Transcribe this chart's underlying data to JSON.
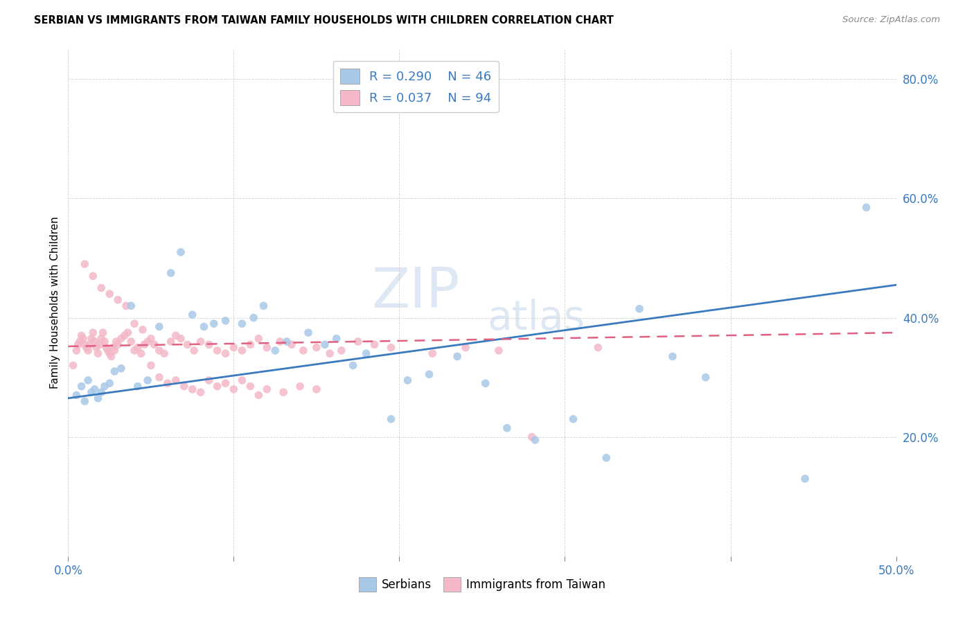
{
  "title": "SERBIAN VS IMMIGRANTS FROM TAIWAN FAMILY HOUSEHOLDS WITH CHILDREN CORRELATION CHART",
  "source": "Source: ZipAtlas.com",
  "ylabel": "Family Households with Children",
  "xlim": [
    0.0,
    0.5
  ],
  "ylim": [
    0.0,
    0.85
  ],
  "legend_serbian": "Serbians",
  "legend_taiwan": "Immigrants from Taiwan",
  "R_serbian": 0.29,
  "N_serbian": 46,
  "R_taiwan": 0.037,
  "N_taiwan": 94,
  "serbian_color": "#a8c8e8",
  "taiwan_color": "#f4b8c8",
  "serbian_line_color": "#3a7abf",
  "taiwan_line_color": "#e06080",
  "serbian_scatter_x": [
    0.005,
    0.008,
    0.01,
    0.012,
    0.014,
    0.016,
    0.018,
    0.02,
    0.022,
    0.025,
    0.028,
    0.032,
    0.038,
    0.042,
    0.048,
    0.055,
    0.062,
    0.068,
    0.075,
    0.082,
    0.088,
    0.095,
    0.105,
    0.112,
    0.118,
    0.125,
    0.132,
    0.145,
    0.155,
    0.162,
    0.172,
    0.18,
    0.195,
    0.205,
    0.218,
    0.235,
    0.252,
    0.265,
    0.282,
    0.305,
    0.325,
    0.345,
    0.365,
    0.385,
    0.445,
    0.482
  ],
  "serbian_scatter_y": [
    0.27,
    0.285,
    0.26,
    0.295,
    0.275,
    0.28,
    0.265,
    0.275,
    0.285,
    0.29,
    0.31,
    0.315,
    0.42,
    0.285,
    0.295,
    0.385,
    0.475,
    0.51,
    0.405,
    0.385,
    0.39,
    0.395,
    0.39,
    0.4,
    0.42,
    0.345,
    0.36,
    0.375,
    0.355,
    0.365,
    0.32,
    0.34,
    0.23,
    0.295,
    0.305,
    0.335,
    0.29,
    0.215,
    0.195,
    0.23,
    0.165,
    0.415,
    0.335,
    0.3,
    0.13,
    0.585
  ],
  "taiwan_scatter_x": [
    0.003,
    0.005,
    0.006,
    0.007,
    0.008,
    0.009,
    0.01,
    0.011,
    0.012,
    0.013,
    0.014,
    0.015,
    0.016,
    0.017,
    0.018,
    0.019,
    0.02,
    0.021,
    0.022,
    0.023,
    0.024,
    0.025,
    0.026,
    0.027,
    0.028,
    0.029,
    0.03,
    0.032,
    0.034,
    0.036,
    0.038,
    0.04,
    0.042,
    0.044,
    0.046,
    0.048,
    0.05,
    0.052,
    0.055,
    0.058,
    0.062,
    0.065,
    0.068,
    0.072,
    0.076,
    0.08,
    0.085,
    0.09,
    0.095,
    0.1,
    0.105,
    0.11,
    0.115,
    0.12,
    0.128,
    0.135,
    0.142,
    0.15,
    0.158,
    0.165,
    0.175,
    0.185,
    0.195,
    0.01,
    0.015,
    0.02,
    0.025,
    0.03,
    0.035,
    0.04,
    0.045,
    0.05,
    0.055,
    0.06,
    0.065,
    0.07,
    0.075,
    0.08,
    0.085,
    0.09,
    0.095,
    0.1,
    0.105,
    0.11,
    0.115,
    0.12,
    0.13,
    0.14,
    0.15,
    0.22,
    0.24,
    0.26,
    0.28,
    0.32
  ],
  "taiwan_scatter_y": [
    0.32,
    0.345,
    0.355,
    0.36,
    0.37,
    0.365,
    0.355,
    0.35,
    0.345,
    0.355,
    0.365,
    0.375,
    0.36,
    0.35,
    0.34,
    0.355,
    0.365,
    0.375,
    0.36,
    0.35,
    0.345,
    0.34,
    0.335,
    0.35,
    0.345,
    0.36,
    0.355,
    0.365,
    0.37,
    0.375,
    0.36,
    0.345,
    0.35,
    0.34,
    0.355,
    0.36,
    0.365,
    0.355,
    0.345,
    0.34,
    0.36,
    0.37,
    0.365,
    0.355,
    0.345,
    0.36,
    0.355,
    0.345,
    0.34,
    0.35,
    0.345,
    0.355,
    0.365,
    0.35,
    0.36,
    0.355,
    0.345,
    0.35,
    0.34,
    0.345,
    0.36,
    0.355,
    0.35,
    0.49,
    0.47,
    0.45,
    0.44,
    0.43,
    0.42,
    0.39,
    0.38,
    0.32,
    0.3,
    0.29,
    0.295,
    0.285,
    0.28,
    0.275,
    0.295,
    0.285,
    0.29,
    0.28,
    0.295,
    0.285,
    0.27,
    0.28,
    0.275,
    0.285,
    0.28,
    0.34,
    0.35,
    0.345,
    0.2,
    0.35
  ]
}
